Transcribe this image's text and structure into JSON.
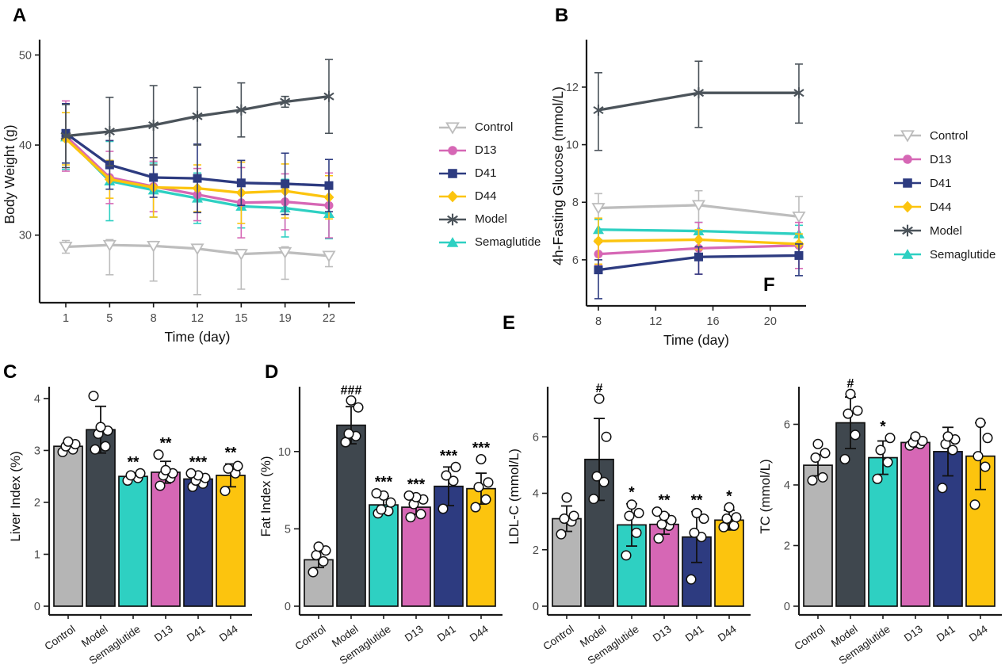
{
  "figure": {
    "background": "#ffffff"
  },
  "chart_data": [
    {
      "panel_label": "A",
      "type": "line",
      "xlabel": "Time (day)",
      "ylabel": "Body Weight (g)",
      "x_tick_labels": [
        "1",
        "5",
        "8",
        "12",
        "15",
        "19",
        "22"
      ],
      "yticks": [
        30,
        40,
        50
      ],
      "ylim": [
        22.5,
        51
      ],
      "legend_position": "right",
      "legend": [
        "Control",
        "D13",
        "D41",
        "D44",
        "Model",
        "Semaglutide"
      ],
      "series": [
        {
          "name": "Control",
          "color": "#bdbdbd",
          "marker": "triangle-down-open",
          "values": [
            28.7,
            28.9,
            28.8,
            28.5,
            27.9,
            28.1,
            27.7
          ],
          "err_up": [
            0.7,
            0.6,
            0.5,
            0.4,
            0.5,
            0.6,
            0.4
          ],
          "err_down": [
            0.7,
            3.3,
            3.9,
            5.1,
            3.9,
            3.0,
            1.2
          ]
        },
        {
          "name": "Semaglutide",
          "color": "#2ed0c2",
          "marker": "triangle-up",
          "values": [
            40.9,
            36.0,
            35.0,
            34.1,
            33.2,
            33.0,
            32.4
          ],
          "err_up": [
            3.6,
            4.4,
            3.0,
            2.8,
            2.4,
            3.2,
            2.8
          ],
          "err_down": [
            3.6,
            4.4,
            3.0,
            2.8,
            2.4,
            3.2,
            2.8
          ]
        },
        {
          "name": "D13",
          "color": "#d667b5",
          "marker": "circle",
          "values": [
            41.0,
            36.4,
            35.4,
            34.5,
            33.6,
            33.7,
            33.3
          ],
          "err_up": [
            3.9,
            2.9,
            2.8,
            2.9,
            3.9,
            3.1,
            3.6
          ],
          "err_down": [
            3.9,
            2.9,
            2.8,
            2.9,
            3.9,
            3.1,
            3.6
          ]
        },
        {
          "name": "D44",
          "color": "#fcc40e",
          "marker": "diamond",
          "values": [
            40.7,
            36.2,
            35.3,
            35.2,
            34.7,
            34.9,
            34.2
          ],
          "err_up": [
            2.9,
            2.1,
            3.3,
            2.6,
            3.4,
            3.0,
            2.4
          ],
          "err_down": [
            2.9,
            2.1,
            3.3,
            2.6,
            3.4,
            3.0,
            2.4
          ]
        },
        {
          "name": "D41",
          "color": "#2d3b80",
          "marker": "square",
          "values": [
            41.3,
            37.8,
            36.4,
            36.3,
            35.8,
            35.7,
            35.5
          ],
          "err_up": [
            3.3,
            2.7,
            2.2,
            3.8,
            2.5,
            3.4,
            2.9
          ],
          "err_down": [
            3.3,
            2.7,
            2.2,
            3.8,
            2.5,
            3.4,
            2.9
          ]
        },
        {
          "name": "Model",
          "color": "#4b535a",
          "marker": "asterisk",
          "values": [
            41.0,
            41.5,
            42.2,
            43.2,
            43.9,
            44.8,
            45.4
          ],
          "err_up": [
            3.5,
            3.8,
            4.4,
            3.2,
            3.0,
            0.6,
            4.1
          ],
          "err_down": [
            3.5,
            3.8,
            4.4,
            3.2,
            3.0,
            0.6,
            4.1
          ]
        }
      ]
    },
    {
      "panel_label": "B",
      "type": "line",
      "xlabel": "Time (day)",
      "ylabel": "4h-Fasting Glucose (mmol/L)",
      "x": [
        8,
        15,
        22
      ],
      "xticks": [
        8,
        12,
        16,
        20
      ],
      "xlim": [
        7.17,
        22.5
      ],
      "yticks": [
        6,
        8,
        10,
        12
      ],
      "ylim": [
        4.4,
        13.43
      ],
      "legend_position": "right",
      "legend": [
        "Control",
        "D13",
        "D41",
        "D44",
        "Model",
        "Semaglutide"
      ],
      "series": [
        {
          "name": "Control",
          "color": "#bdbdbd",
          "marker": "triangle-down-open",
          "values": [
            7.8,
            7.9,
            7.5
          ],
          "err_up": [
            0.5,
            0.5,
            0.7
          ],
          "err_down": [
            0.4,
            0.6,
            0.3
          ]
        },
        {
          "name": "Semaglutide",
          "color": "#2ed0c2",
          "marker": "triangle-up",
          "values": [
            7.05,
            7.0,
            6.9
          ],
          "err_up": [
            0.35,
            0.3,
            0.3
          ],
          "err_down": [
            0.35,
            0.3,
            0.3
          ]
        },
        {
          "name": "D13",
          "color": "#d667b5",
          "marker": "circle",
          "values": [
            6.2,
            6.4,
            6.5
          ],
          "err_up": [
            0.4,
            0.9,
            0.8
          ],
          "err_down": [
            0.4,
            0.9,
            0.8
          ]
        },
        {
          "name": "D44",
          "color": "#fcc40e",
          "marker": "diamond",
          "values": [
            6.65,
            6.7,
            6.55
          ],
          "err_up": [
            0.8,
            0.35,
            0.35
          ],
          "err_down": [
            0.8,
            0.35,
            0.35
          ]
        },
        {
          "name": "D41",
          "color": "#2d3b80",
          "marker": "square",
          "values": [
            5.65,
            6.1,
            6.15
          ],
          "err_up": [
            0.35,
            0.35,
            0.4
          ],
          "err_down": [
            1.0,
            0.6,
            0.7
          ]
        },
        {
          "name": "Model",
          "color": "#4b535a",
          "marker": "asterisk",
          "values": [
            11.2,
            11.8,
            11.8
          ],
          "err_up": [
            1.3,
            1.1,
            1.0
          ],
          "err_down": [
            1.4,
            1.2,
            1.05
          ]
        }
      ]
    },
    {
      "panel_label": "C",
      "type": "bar",
      "ylabel": "Liver Index (%)",
      "categories": [
        "Control",
        "Model",
        "Semaglutide",
        "D13",
        "D41",
        "D44"
      ],
      "colors": [
        "#b5b5b5",
        "#3f474e",
        "#2ed0c2",
        "#d667b5",
        "#2d3b80",
        "#fcc40e"
      ],
      "values": [
        3.08,
        3.4,
        2.5,
        2.58,
        2.45,
        2.52
      ],
      "err": [
        0,
        0.45,
        0.06,
        0.21,
        0.06,
        0.22
      ],
      "sig": [
        "",
        "",
        "**",
        "**",
        "***",
        "**"
      ],
      "yticks": [
        0,
        1,
        2,
        3,
        4
      ],
      "ylim": [
        0,
        4.35
      ],
      "points": [
        [
          2.97,
          3.02,
          3.08,
          3.12,
          3.17
        ],
        [
          3.02,
          3.08,
          3.32,
          3.38,
          3.45,
          4.05
        ],
        [
          2.42,
          2.47,
          2.52,
          2.56
        ],
        [
          2.32,
          2.47,
          2.52,
          2.56,
          2.62,
          2.92
        ],
        [
          2.3,
          2.36,
          2.42,
          2.47,
          2.52,
          2.56
        ],
        [
          2.22,
          2.56,
          2.65,
          2.7
        ]
      ]
    },
    {
      "panel_label": "D",
      "type": "bar",
      "ylabel": "Fat Index (%)",
      "categories": [
        "Control",
        "Model",
        "Semaglutide",
        "D13",
        "D41",
        "D44"
      ],
      "colors": [
        "#b5b5b5",
        "#3f474e",
        "#2ed0c2",
        "#d667b5",
        "#2d3b80",
        "#fcc40e"
      ],
      "values": [
        3.0,
        11.7,
        6.55,
        6.4,
        7.75,
        7.6
      ],
      "err": [
        0.5,
        1.2,
        0.55,
        0.45,
        1.25,
        1.0
      ],
      "sig": [
        "",
        "###",
        "***",
        "***",
        "***",
        "***"
      ],
      "yticks": [
        0,
        5,
        10
      ],
      "ylim": [
        0,
        14.6
      ],
      "points": [
        [
          2.2,
          2.9,
          3.3,
          3.6,
          3.85
        ],
        [
          10.6,
          11.0,
          11.15,
          12.85,
          13.3
        ],
        [
          6.0,
          6.15,
          6.25,
          6.7,
          7.15,
          7.3
        ],
        [
          5.75,
          5.95,
          6.6,
          6.9,
          7.05,
          7.15
        ],
        [
          6.3,
          8.1,
          8.45,
          9.0
        ],
        [
          6.4,
          6.9,
          7.7,
          8.0,
          9.5
        ]
      ]
    },
    {
      "panel_label": "E",
      "type": "bar",
      "ylabel": "LDL-C (mmol/L)",
      "categories": [
        "Control",
        "Model",
        "Semaglutide",
        "D13",
        "D41",
        "D44"
      ],
      "colors": [
        "#b5b5b5",
        "#3f474e",
        "#2ed0c2",
        "#d667b5",
        "#2d3b80",
        "#fcc40e"
      ],
      "values": [
        3.1,
        5.2,
        2.88,
        2.9,
        2.45,
        3.05
      ],
      "err": [
        0.45,
        1.45,
        0.75,
        0.35,
        0.9,
        0.35
      ],
      "sig": [
        "",
        "#",
        "*",
        "**",
        "**",
        "*"
      ],
      "yticks": [
        0,
        2,
        4,
        6
      ],
      "ylim": [
        0,
        8.0
      ],
      "points": [
        [
          2.55,
          3.0,
          3.1,
          3.2,
          3.85
        ],
        [
          3.8,
          4.4,
          4.6,
          6.0,
          7.35
        ],
        [
          1.8,
          2.6,
          3.2,
          3.3,
          3.6
        ],
        [
          2.4,
          2.85,
          2.9,
          3.05,
          3.2,
          3.35
        ],
        [
          0.95,
          2.45,
          2.6,
          3.1,
          3.3
        ],
        [
          2.8,
          2.85,
          3.1,
          3.15,
          3.5
        ]
      ]
    },
    {
      "panel_label": "F",
      "type": "bar",
      "ylabel": "TC (mmol/L)",
      "categories": [
        "Control",
        "Model",
        "Semaglutide",
        "D13",
        "D41",
        "D44"
      ],
      "colors": [
        "#b5b5b5",
        "#3f474e",
        "#2ed0c2",
        "#d667b5",
        "#2d3b80",
        "#fcc40e"
      ],
      "values": [
        4.65,
        6.05,
        4.9,
        5.4,
        5.1,
        4.95
      ],
      "err": [
        0.35,
        0.85,
        0.55,
        0.15,
        0.8,
        1.1
      ],
      "sig": [
        "",
        "#",
        "*",
        "",
        "",
        ""
      ],
      "yticks": [
        0,
        2,
        4,
        6
      ],
      "ylim": [
        0,
        7.45
      ],
      "points": [
        [
          4.15,
          4.25,
          4.9,
          5.05,
          5.35
        ],
        [
          4.85,
          5.65,
          6.35,
          6.45,
          7.0
        ],
        [
          4.2,
          4.75,
          5.15,
          5.55
        ],
        [
          5.3,
          5.35,
          5.4,
          5.45,
          5.6
        ],
        [
          3.9,
          5.15,
          5.35,
          5.5,
          5.6
        ],
        [
          3.35,
          4.6,
          4.95,
          5.55,
          6.05
        ]
      ]
    }
  ]
}
